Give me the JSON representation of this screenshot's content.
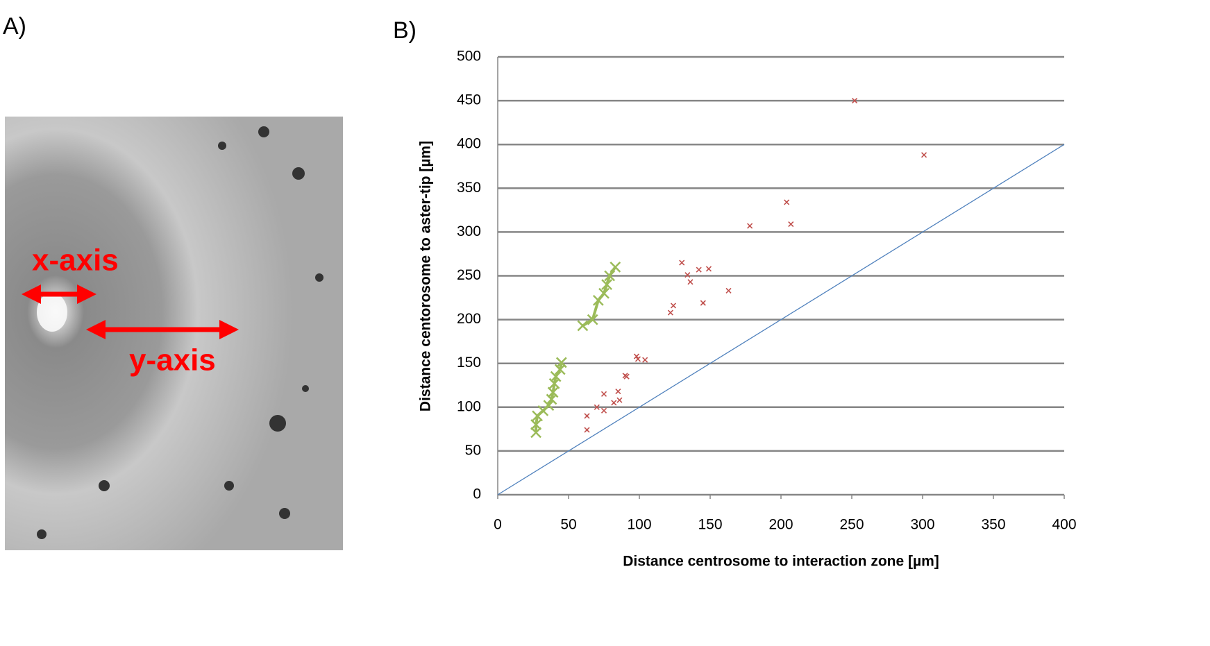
{
  "panels": {
    "a": {
      "label": "A)",
      "annotations": [
        "x-axis",
        "y-axis"
      ]
    },
    "b": {
      "label": "B)"
    }
  },
  "chart_data": {
    "type": "scatter",
    "xlabel": "Distance centrosome to interaction zone [µm]",
    "ylabel": "Distance centorosome to aster-tip [µm]",
    "xlim": [
      0,
      400
    ],
    "xticks": [
      0,
      50,
      100,
      150,
      200,
      250,
      300,
      350,
      400
    ],
    "ylim": [
      0,
      500
    ],
    "yticks": [
      0,
      50,
      100,
      150,
      200,
      250,
      300,
      350,
      400,
      450,
      500
    ],
    "grid": true,
    "series": [
      {
        "color": "#c0504d",
        "mode": "markers",
        "x": [
          252,
          301,
          204,
          207,
          178,
          130,
          142,
          149,
          134,
          136,
          163,
          145,
          124,
          122,
          98,
          99,
          104,
          90,
          91,
          75,
          85,
          86,
          82,
          70,
          75,
          63,
          63
        ],
        "values": [
          450,
          388,
          334,
          309,
          307,
          265,
          257,
          258,
          251,
          243,
          233,
          219,
          216,
          208,
          158,
          155,
          154,
          136,
          135,
          115,
          118,
          108,
          105,
          100,
          96,
          90,
          74
        ]
      },
      {
        "color": "#9bbb59",
        "mode": "lines+markers",
        "x": [
          27,
          27,
          28,
          32,
          36,
          38,
          39,
          40,
          41,
          44,
          45,
          null,
          60,
          67,
          71,
          75,
          77,
          79,
          83
        ],
        "values": [
          71,
          80,
          90,
          96,
          102,
          109,
          117,
          127,
          135,
          143,
          151,
          null,
          193,
          200,
          222,
          230,
          240,
          250,
          260
        ]
      },
      {
        "color": "#4f81bd",
        "mode": "line",
        "x": [
          0,
          400
        ],
        "values": [
          0,
          400
        ]
      }
    ]
  }
}
